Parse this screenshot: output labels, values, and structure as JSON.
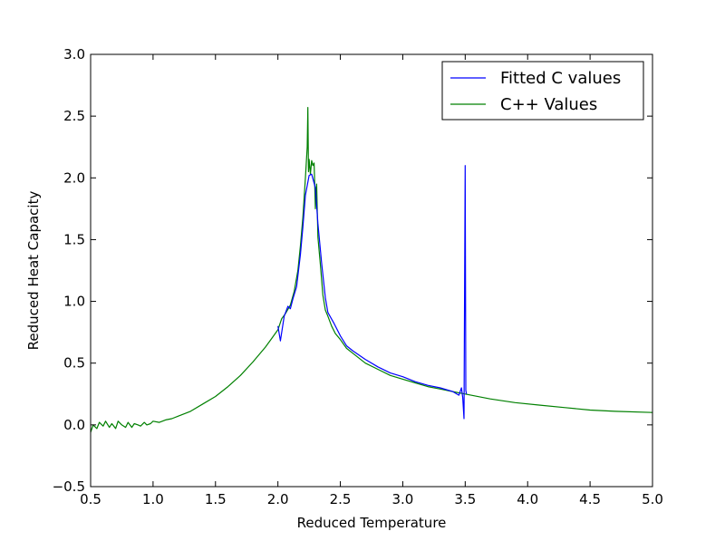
{
  "chart_data": {
    "type": "line",
    "title": "",
    "xlabel": "Reduced Temperature",
    "ylabel": "Reduced Heat Capacity",
    "xlim": [
      0.5,
      5.0
    ],
    "ylim": [
      -0.5,
      3.0
    ],
    "xticks": [
      "0.5",
      "1.0",
      "1.5",
      "2.0",
      "2.5",
      "3.0",
      "3.5",
      "4.0",
      "4.5",
      "5.0"
    ],
    "yticks": [
      "−0.5",
      "0.0",
      "0.5",
      "1.0",
      "1.5",
      "2.0",
      "2.5",
      "3.0"
    ],
    "grid": false,
    "legend_position": "upper right",
    "series": [
      {
        "name": "Fitted C values",
        "color": "#0000ff",
        "x": [
          2.0,
          2.02,
          2.05,
          2.08,
          2.1,
          2.12,
          2.15,
          2.18,
          2.2,
          2.22,
          2.25,
          2.27,
          2.3,
          2.32,
          2.35,
          2.38,
          2.4,
          2.45,
          2.5,
          2.55,
          2.6,
          2.7,
          2.8,
          2.9,
          3.0,
          3.1,
          3.2,
          3.3,
          3.4,
          3.45,
          3.47,
          3.48,
          3.49,
          3.5,
          3.505,
          3.51
        ],
        "y": [
          0.8,
          0.68,
          0.88,
          0.96,
          0.94,
          1.02,
          1.12,
          1.38,
          1.6,
          1.86,
          2.02,
          2.03,
          1.92,
          1.63,
          1.31,
          1.03,
          0.91,
          0.82,
          0.72,
          0.64,
          0.6,
          0.53,
          0.47,
          0.42,
          0.39,
          0.35,
          0.32,
          0.3,
          0.27,
          0.24,
          0.3,
          0.22,
          0.05,
          2.1,
          0.28,
          0.25
        ]
      },
      {
        "name": "C++ Values",
        "color": "#008000",
        "x": [
          0.5,
          0.52,
          0.55,
          0.57,
          0.6,
          0.62,
          0.65,
          0.67,
          0.7,
          0.72,
          0.75,
          0.78,
          0.8,
          0.83,
          0.85,
          0.88,
          0.9,
          0.93,
          0.95,
          0.98,
          1.0,
          1.05,
          1.1,
          1.15,
          1.2,
          1.3,
          1.4,
          1.5,
          1.6,
          1.7,
          1.8,
          1.9,
          1.95,
          2.0,
          2.03,
          2.06,
          2.1,
          2.13,
          2.16,
          2.18,
          2.2,
          2.22,
          2.235,
          2.24,
          2.245,
          2.25,
          2.26,
          2.27,
          2.28,
          2.29,
          2.3,
          2.31,
          2.32,
          2.34,
          2.36,
          2.38,
          2.4,
          2.43,
          2.46,
          2.5,
          2.55,
          2.6,
          2.7,
          2.8,
          2.9,
          3.0,
          3.1,
          3.2,
          3.3,
          3.4,
          3.5,
          3.7,
          3.9,
          4.1,
          4.3,
          4.5,
          4.7,
          5.0
        ],
        "y": [
          -0.06,
          0.0,
          -0.03,
          0.02,
          -0.01,
          0.03,
          -0.02,
          0.01,
          -0.03,
          0.03,
          0.0,
          -0.02,
          0.02,
          -0.02,
          0.01,
          0.0,
          -0.01,
          0.02,
          0.0,
          0.01,
          0.03,
          0.02,
          0.04,
          0.05,
          0.07,
          0.11,
          0.17,
          0.23,
          0.31,
          0.4,
          0.51,
          0.63,
          0.7,
          0.77,
          0.86,
          0.9,
          0.97,
          1.08,
          1.25,
          1.45,
          1.68,
          2.0,
          2.25,
          2.57,
          2.05,
          2.15,
          2.03,
          2.14,
          2.1,
          2.12,
          1.75,
          1.95,
          1.52,
          1.3,
          1.05,
          0.93,
          0.88,
          0.8,
          0.74,
          0.69,
          0.62,
          0.58,
          0.5,
          0.45,
          0.4,
          0.37,
          0.34,
          0.31,
          0.29,
          0.27,
          0.25,
          0.21,
          0.18,
          0.16,
          0.14,
          0.12,
          0.11,
          0.1
        ]
      }
    ]
  }
}
